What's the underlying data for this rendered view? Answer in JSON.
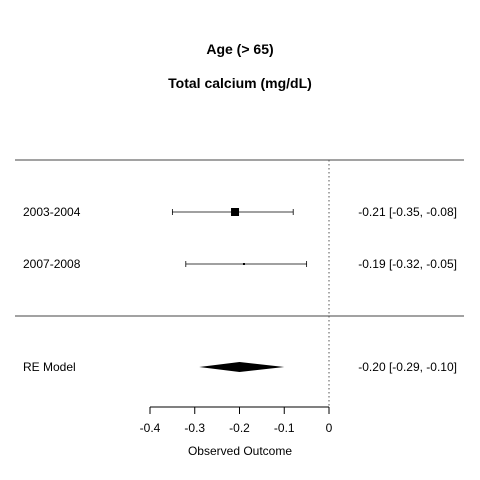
{
  "title": "Age (> 65)",
  "subtitle": "Total calcium (mg/dL)",
  "chart_data": {
    "type": "forest",
    "title": "Age (> 65)",
    "subtitle": "Total calcium (mg/dL)",
    "xlabel": "Observed Outcome",
    "xlim": [
      -0.4,
      0
    ],
    "xticks": [
      -0.4,
      -0.3,
      -0.2,
      -0.1,
      0
    ],
    "xtick_labels": [
      "-0.4",
      "-0.3",
      "-0.2",
      "-0.1",
      "0"
    ],
    "reference_line": 0,
    "studies": [
      {
        "label": "2003-2004",
        "estimate": -0.21,
        "lower": -0.35,
        "upper": -0.08,
        "annotation": "-0.21 [-0.35, -0.08]",
        "weight": "large"
      },
      {
        "label": "2007-2008",
        "estimate": -0.19,
        "lower": -0.32,
        "upper": -0.05,
        "annotation": "-0.19 [-0.32, -0.05]",
        "weight": "small"
      }
    ],
    "summary": {
      "label": "RE Model",
      "estimate": -0.2,
      "lower": -0.29,
      "upper": -0.1,
      "annotation": "-0.20 [-0.29, -0.10]"
    }
  }
}
